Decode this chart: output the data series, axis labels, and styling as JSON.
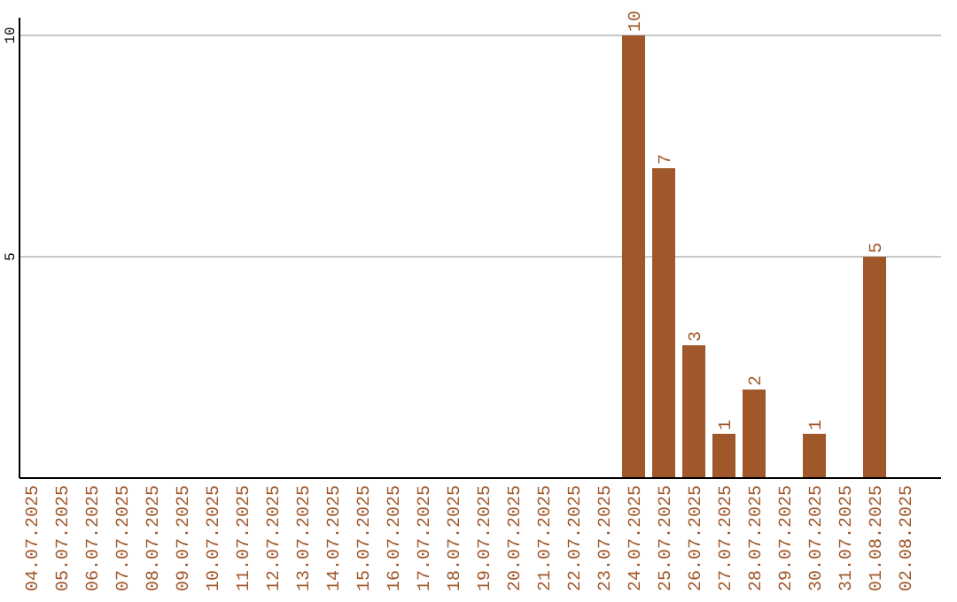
{
  "chart_data": {
    "type": "bar",
    "categories": [
      "04.07.2025",
      "05.07.2025",
      "06.07.2025",
      "07.07.2025",
      "08.07.2025",
      "09.07.2025",
      "10.07.2025",
      "11.07.2025",
      "12.07.2025",
      "13.07.2025",
      "14.07.2025",
      "15.07.2025",
      "16.07.2025",
      "17.07.2025",
      "18.07.2025",
      "19.07.2025",
      "20.07.2025",
      "21.07.2025",
      "22.07.2025",
      "23.07.2025",
      "24.07.2025",
      "25.07.2025",
      "26.07.2025",
      "27.07.2025",
      "28.07.2025",
      "29.07.2025",
      "30.07.2025",
      "31.07.2025",
      "01.08.2025",
      "02.08.2025"
    ],
    "values": [
      0,
      0,
      0,
      0,
      0,
      0,
      0,
      0,
      0,
      0,
      0,
      0,
      0,
      0,
      0,
      0,
      0,
      0,
      0,
      0,
      10,
      7,
      3,
      1,
      2,
      0,
      1,
      0,
      5,
      0
    ],
    "value_labels": [
      null,
      null,
      null,
      null,
      null,
      null,
      null,
      null,
      null,
      null,
      null,
      null,
      null,
      null,
      null,
      null,
      null,
      null,
      null,
      null,
      "10",
      "7",
      "3",
      "1",
      "2",
      null,
      "1",
      null,
      "5",
      null
    ],
    "color": "#a0582a",
    "ylim": [
      0,
      10
    ],
    "yticks": [
      5,
      10
    ],
    "grid": "y"
  }
}
